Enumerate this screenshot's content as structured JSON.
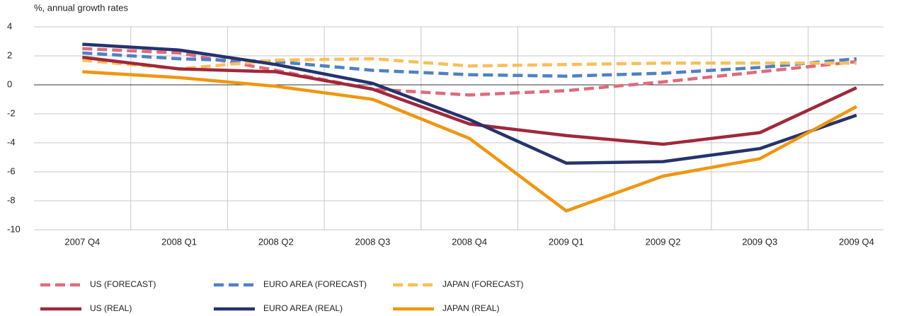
{
  "chart_data": {
    "type": "line",
    "y_axis_label": "%, annual growth rates",
    "categories": [
      "2007 Q4",
      "2008 Q1",
      "2008 Q2",
      "2008 Q3",
      "2008 Q4",
      "2009 Q1",
      "2009 Q2",
      "2009 Q3",
      "2009 Q4"
    ],
    "series": [
      {
        "name": "US (FORECAST)",
        "color": "#e06b7b",
        "style": "dashed",
        "values": [
          2.5,
          2.2,
          1.0,
          -0.3,
          -0.7,
          -0.4,
          0.2,
          0.9,
          1.6
        ]
      },
      {
        "name": "EURO AREA (FORECAST)",
        "color": "#4f81c4",
        "style": "dashed",
        "values": [
          2.2,
          1.8,
          1.6,
          1.0,
          0.7,
          0.6,
          0.8,
          1.2,
          1.8
        ]
      },
      {
        "name": "JAPAN (FORECAST)",
        "color": "#f9bf5a",
        "style": "dashed",
        "values": [
          1.7,
          1.1,
          1.7,
          1.8,
          1.3,
          1.4,
          1.5,
          1.5,
          1.5
        ]
      },
      {
        "name": "US (REAL)",
        "color": "#a0283a",
        "style": "solid",
        "values": [
          1.9,
          1.1,
          0.9,
          -0.3,
          -2.7,
          -3.5,
          -4.1,
          -3.3,
          -0.2
        ]
      },
      {
        "name": "EURO AREA (REAL)",
        "color": "#25336e",
        "style": "solid",
        "values": [
          2.8,
          2.4,
          1.4,
          0.1,
          -2.4,
          -5.4,
          -5.3,
          -4.4,
          -2.1
        ]
      },
      {
        "name": "JAPAN (REAL)",
        "color": "#f0960f",
        "style": "solid",
        "values": [
          0.9,
          0.5,
          -0.1,
          -1.0,
          -3.7,
          -8.7,
          -6.3,
          -5.1,
          -1.5
        ]
      }
    ],
    "ylim": [
      -10,
      4
    ],
    "yticks": [
      4,
      2,
      0,
      -2,
      -4,
      -6,
      -8,
      -10
    ],
    "grid": true,
    "legend": "bottom"
  }
}
